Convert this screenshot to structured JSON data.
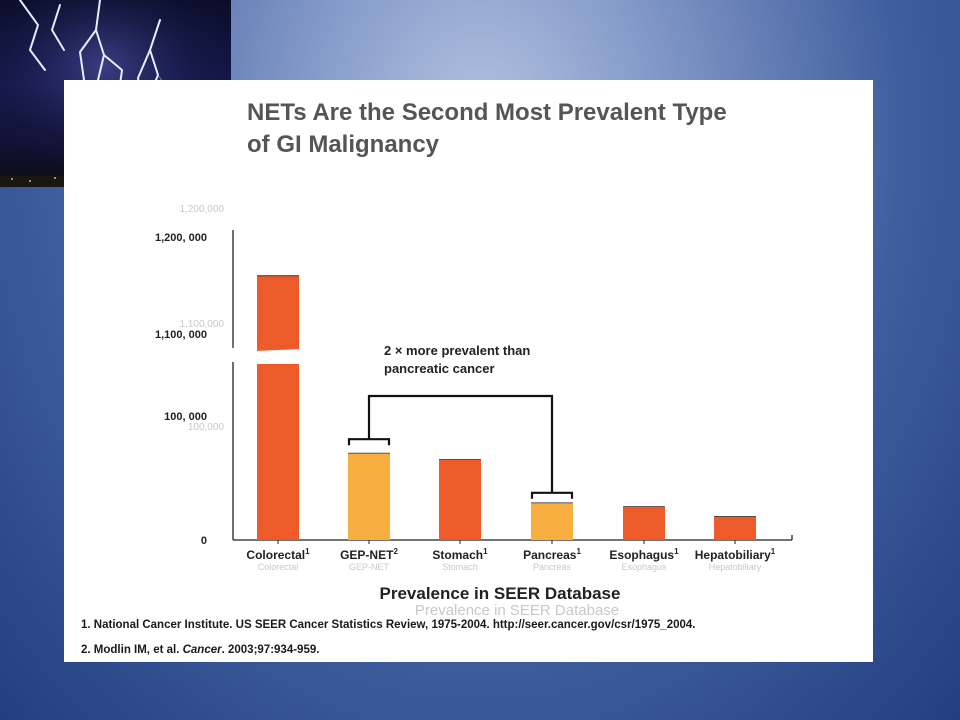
{
  "slide": {
    "title": "NETs Are the Second Most Prevalent Type\nof GI Malignancy",
    "footnotes": [
      {
        "num": "1.",
        "text": "National Cancer Institute. US SEER Cancer Statistics Review, 1975-2004. http://seer.cancer.gov/csr/1975_2004."
      },
      {
        "num": "2.",
        "text": "Modlin IM, et al. ",
        "journal": "Cancer",
        "rest": ". 2003;97:934-959."
      }
    ],
    "lightning_photo": "lightning-storm-photo"
  },
  "colors": {
    "background": "#3f5e9e",
    "bar_primary": "#ee5b2a",
    "bar_highlight": "#f8ae3f",
    "text": "#222222"
  },
  "chart_data": {
    "type": "bar",
    "title": "",
    "xlabel": "Prevalence in SEER Database",
    "ylabel": "",
    "axis_break": true,
    "y_ticks": [
      "0",
      "100, 000",
      "1,100, 000",
      "1,200, 000"
    ],
    "categories": [
      "Colorectal",
      "GEP-NET",
      "Stomach",
      "Pancreas",
      "Esophagus",
      "Hepatobiliary"
    ],
    "category_refs": [
      "1",
      "2",
      "1",
      "1",
      "1",
      "1"
    ],
    "values": [
      1160000,
      70000,
      65000,
      30000,
      27000,
      19000
    ],
    "highlight": [
      "GEP-NET",
      "Pancreas"
    ],
    "annotation": {
      "text": "2 × more prevalent than\npancreatic cancer",
      "connects": [
        "GEP-NET",
        "Pancreas"
      ]
    },
    "faint_overlay": {
      "ticks": [
        "1,200,000",
        "1,100,000",
        "100,000"
      ],
      "xlabel": "Prevalence in SEER Database"
    }
  }
}
